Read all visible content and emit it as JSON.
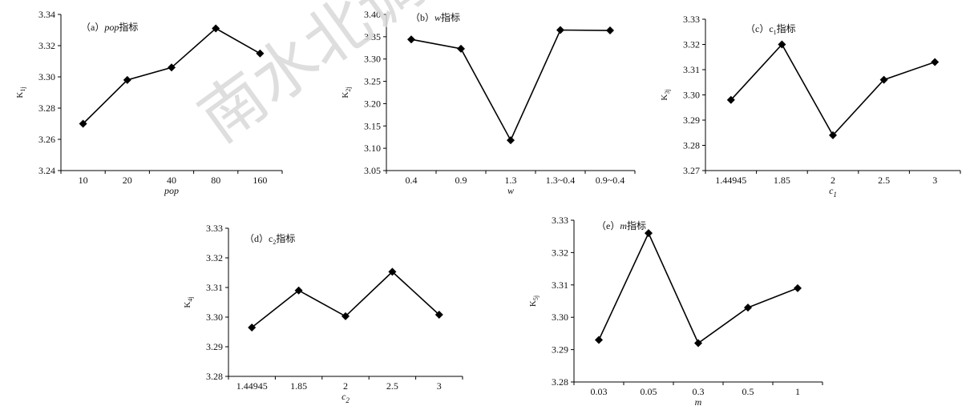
{
  "watermark": {
    "text": "南水北调与水利科技（中英文）",
    "color": "#d9d9d9"
  },
  "colors": {
    "line": "#000000",
    "marker": "#000000",
    "axis": "#000000"
  },
  "chart_data": [
    {
      "type": "line",
      "title": {
        "prefix": "（a）",
        "var": "pop",
        "suffix": "指标"
      },
      "ylabel": "K",
      "ylabel_sub": "1j",
      "xlabel": "pop",
      "xlabel_sub": "",
      "categories": [
        "10",
        "20",
        "40",
        "80",
        "160"
      ],
      "values": [
        3.27,
        3.298,
        3.306,
        3.331,
        3.315
      ],
      "ylim": [
        3.24,
        3.34
      ],
      "yticks": [
        "3.24",
        "3.26",
        "3.28",
        "3.30",
        "3.32",
        "3.34"
      ],
      "marker": "diamond",
      "grid": false,
      "legend": "none"
    },
    {
      "type": "line",
      "title": {
        "prefix": "（b）",
        "var": "w",
        "suffix": "指标"
      },
      "ylabel": "K",
      "ylabel_sub": "2j",
      "xlabel": "w",
      "xlabel_sub": "",
      "categories": [
        "0.4",
        "0.9",
        "1.3",
        "1.3~0.4",
        "0.9~0.4"
      ],
      "values": [
        3.344,
        3.323,
        3.118,
        3.365,
        3.364
      ],
      "ylim": [
        3.05,
        3.4
      ],
      "yticks": [
        "3.05",
        "3.10",
        "3.15",
        "3.20",
        "3.25",
        "3.30",
        "3.35",
        "3.40"
      ],
      "marker": "diamond",
      "grid": false,
      "legend": "none"
    },
    {
      "type": "line",
      "title": {
        "prefix": "（c）c",
        "var": "",
        "sub": "1",
        "suffix": "指标"
      },
      "ylabel": "K",
      "ylabel_sub": "3j",
      "xlabel": "c",
      "xlabel_sub": "1",
      "categories": [
        "1.44945",
        "1.85",
        "2",
        "2.5",
        "3"
      ],
      "values": [
        3.298,
        3.32,
        3.284,
        3.306,
        3.313
      ],
      "ylim": [
        3.27,
        3.33
      ],
      "yticks": [
        "3.27",
        "3.28",
        "3.29",
        "3.30",
        "3.31",
        "3.32",
        "3.33"
      ],
      "marker": "diamond",
      "grid": false,
      "legend": "none"
    },
    {
      "type": "line",
      "title": {
        "prefix": "（d）c",
        "var": "",
        "sub": "2",
        "suffix": "指标"
      },
      "ylabel": "K",
      "ylabel_sub": "4j",
      "xlabel": "c",
      "xlabel_sub": "2",
      "categories": [
        "1.44945",
        "1.85",
        "2",
        "2.5",
        "3"
      ],
      "values": [
        3.2965,
        3.309,
        3.3003,
        3.3153,
        3.3008
      ],
      "ylim": [
        3.28,
        3.33
      ],
      "yticks": [
        "3.28",
        "3.29",
        "3.30",
        "3.31",
        "3.32",
        "3.33"
      ],
      "marker": "diamond",
      "grid": false,
      "legend": "none"
    },
    {
      "type": "line",
      "title": {
        "prefix": "（e）",
        "var": "m",
        "suffix": "指标"
      },
      "ylabel": "K",
      "ylabel_sub": "5j",
      "xlabel": "m",
      "xlabel_sub": "",
      "categories": [
        "0.03",
        "0.05",
        "0.3",
        "0.5",
        "1"
      ],
      "values": [
        3.293,
        3.326,
        3.292,
        3.303,
        3.309
      ],
      "ylim": [
        3.28,
        3.33
      ],
      "yticks": [
        "3.28",
        "3.29",
        "3.30",
        "3.31",
        "3.32",
        "3.33"
      ],
      "marker": "diamond",
      "grid": false,
      "legend": "none"
    }
  ]
}
